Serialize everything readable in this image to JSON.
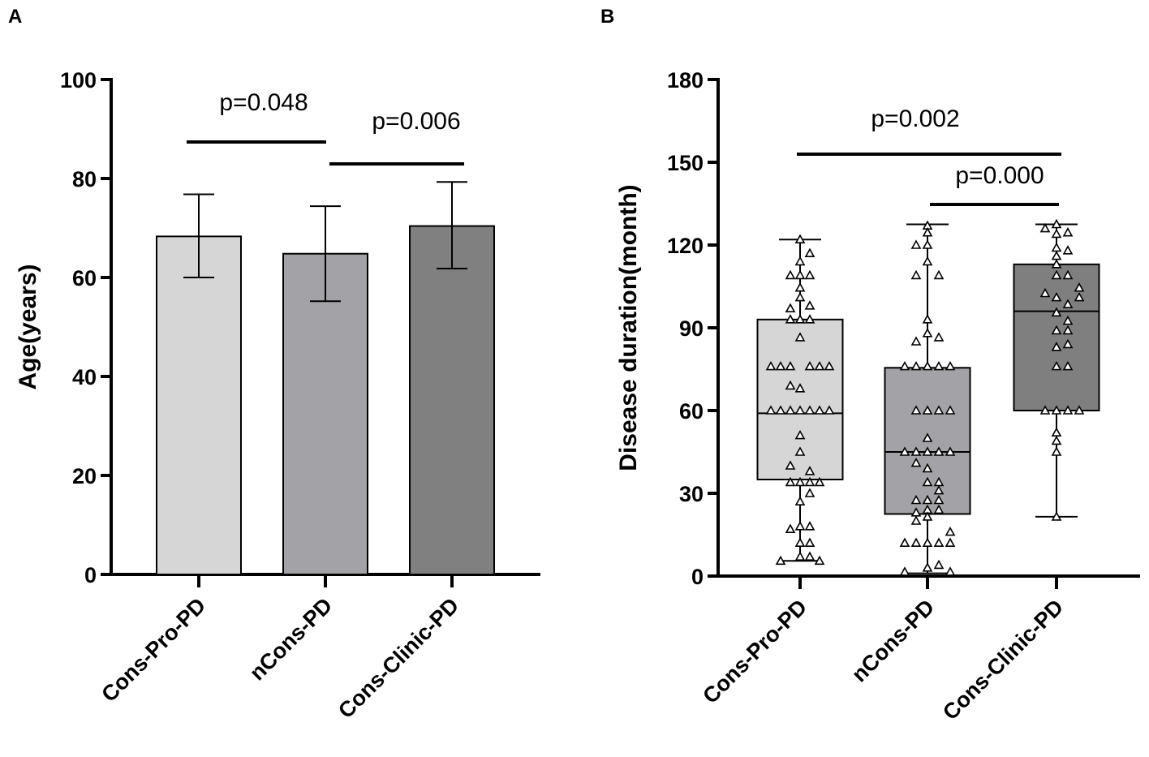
{
  "chart_data": [
    {
      "panel": "A",
      "type": "bar",
      "title": "",
      "ylabel": "Age(years)",
      "xlabel": "",
      "ylim": [
        0,
        100
      ],
      "yticks": [
        0,
        20,
        40,
        60,
        80,
        100
      ],
      "categories": [
        "Cons-Pro-PD",
        "nCons-PD",
        "Cons-Clinic-PD"
      ],
      "values": [
        68.3,
        64.8,
        70.4
      ],
      "error_low": [
        60.0,
        55.2,
        61.8
      ],
      "error_high": [
        76.8,
        74.4,
        79.3
      ],
      "colors": [
        "#d6d6d6",
        "#a3a3a7",
        "#808080"
      ],
      "annotations": [
        {
          "text": "p=0.048",
          "from": 0,
          "to": 1
        },
        {
          "text": "p=0.006",
          "from": 1,
          "to": 2
        }
      ]
    },
    {
      "panel": "B",
      "type": "box",
      "title": "",
      "ylabel": "Disease duration(month)",
      "xlabel": "",
      "ylim": [
        0,
        180
      ],
      "yticks": [
        0,
        30,
        60,
        90,
        120,
        150,
        180
      ],
      "categories": [
        "Cons-Pro-PD",
        "nCons-PD",
        "Cons-Clinic-PD"
      ],
      "colors": [
        "#d6d6d6",
        "#a3a3a7",
        "#7f7f7f"
      ],
      "boxes": [
        {
          "min": 5.5,
          "q1": 35,
          "median": 59,
          "q3": 93,
          "max": 122
        },
        {
          "min": 1,
          "q1": 22.5,
          "median": 45,
          "q3": 75.5,
          "max": 127.5
        },
        {
          "min": 21.5,
          "q1": 60,
          "median": 96,
          "q3": 113,
          "max": 127.5
        }
      ],
      "points": [
        [
          [
            122,
            0
          ],
          [
            117,
            1
          ],
          [
            114,
            0
          ],
          [
            109,
            -1
          ],
          [
            109,
            0
          ],
          [
            109,
            1
          ],
          [
            104.5,
            0
          ],
          [
            101,
            0
          ],
          [
            98,
            1
          ],
          [
            97,
            -1
          ],
          [
            93,
            -1
          ],
          [
            93,
            0
          ],
          [
            93,
            1
          ],
          [
            86.5,
            0
          ],
          [
            76,
            -3
          ],
          [
            76,
            -2
          ],
          [
            76,
            -1
          ],
          [
            76,
            1
          ],
          [
            76,
            2
          ],
          [
            76,
            3
          ],
          [
            69,
            -1
          ],
          [
            68,
            0
          ],
          [
            60,
            -3
          ],
          [
            60,
            -2
          ],
          [
            60,
            -1
          ],
          [
            60,
            0
          ],
          [
            60,
            1
          ],
          [
            60,
            2
          ],
          [
            60,
            3
          ],
          [
            51,
            0
          ],
          [
            45,
            0
          ],
          [
            40,
            -1
          ],
          [
            38,
            1
          ],
          [
            34,
            -1
          ],
          [
            34,
            0
          ],
          [
            34,
            1
          ],
          [
            34,
            2
          ],
          [
            30,
            1
          ],
          [
            27,
            0
          ],
          [
            18,
            0
          ],
          [
            18,
            1
          ],
          [
            17,
            -1
          ],
          [
            12,
            0
          ],
          [
            12,
            1
          ],
          [
            7,
            0
          ],
          [
            7,
            1
          ],
          [
            5.5,
            -2
          ],
          [
            5.5,
            2
          ]
        ],
        [
          [
            127,
            0
          ],
          [
            124.5,
            0
          ],
          [
            120,
            -1
          ],
          [
            120,
            0
          ],
          [
            114,
            0
          ],
          [
            109,
            -1
          ],
          [
            109,
            1
          ],
          [
            93,
            0
          ],
          [
            88,
            0
          ],
          [
            86.5,
            1
          ],
          [
            85,
            -1
          ],
          [
            76,
            -2
          ],
          [
            76,
            -1
          ],
          [
            76,
            0
          ],
          [
            76,
            1
          ],
          [
            76,
            2
          ],
          [
            60,
            -1
          ],
          [
            60,
            0
          ],
          [
            60,
            1
          ],
          [
            60,
            2
          ],
          [
            50,
            0
          ],
          [
            45,
            -2
          ],
          [
            45,
            -1
          ],
          [
            45,
            0
          ],
          [
            45,
            1
          ],
          [
            45,
            2
          ],
          [
            41,
            -1
          ],
          [
            39,
            0
          ],
          [
            34,
            0
          ],
          [
            34,
            1
          ],
          [
            31,
            1
          ],
          [
            27.5,
            -1
          ],
          [
            27.5,
            0
          ],
          [
            27.5,
            1
          ],
          [
            24,
            0
          ],
          [
            24,
            1
          ],
          [
            23,
            -1
          ],
          [
            21.5,
            0
          ],
          [
            20,
            -1
          ],
          [
            16,
            2
          ],
          [
            12,
            -2
          ],
          [
            12,
            -1
          ],
          [
            12,
            0
          ],
          [
            12,
            1
          ],
          [
            12,
            2
          ],
          [
            4,
            1
          ],
          [
            3,
            0
          ],
          [
            1.5,
            -2
          ],
          [
            1.5,
            2
          ]
        ],
        [
          [
            127.5,
            0
          ],
          [
            126,
            -1
          ],
          [
            124.5,
            1
          ],
          [
            124,
            0
          ],
          [
            119,
            0
          ],
          [
            118,
            1
          ],
          [
            116,
            0
          ],
          [
            113,
            0
          ],
          [
            109,
            0
          ],
          [
            109,
            1
          ],
          [
            104.5,
            2
          ],
          [
            102.5,
            -1
          ],
          [
            101,
            0
          ],
          [
            101,
            2
          ],
          [
            98.5,
            1
          ],
          [
            95.5,
            0
          ],
          [
            92.5,
            1
          ],
          [
            89,
            0
          ],
          [
            89,
            1
          ],
          [
            84,
            1
          ],
          [
            83,
            0
          ],
          [
            76,
            0
          ],
          [
            76,
            1
          ],
          [
            60,
            -1
          ],
          [
            60,
            0
          ],
          [
            60,
            1
          ],
          [
            60,
            2
          ],
          [
            52,
            0
          ],
          [
            49,
            0
          ],
          [
            45,
            0
          ],
          [
            21.5,
            0
          ]
        ]
      ],
      "annotations": [
        {
          "text": "p=0.002",
          "from": 0,
          "to": 2
        },
        {
          "text": "p=0.000",
          "from": 1,
          "to": 2
        }
      ]
    }
  ]
}
